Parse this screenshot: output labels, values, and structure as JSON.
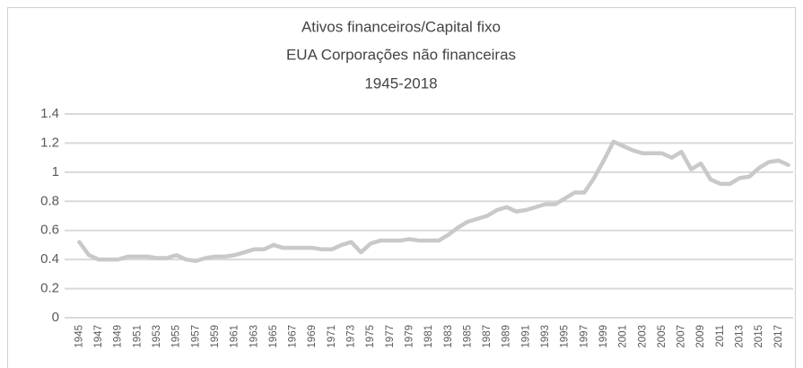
{
  "chart_data": {
    "type": "line",
    "title": "Ativos financeiros/Capital fixo",
    "subtitle": [
      "EUA Corporações não financeiras",
      "1945-2018"
    ],
    "categories": [
      "1945",
      null,
      "1947",
      null,
      "1949",
      null,
      "1951",
      null,
      "1953",
      null,
      "1955",
      null,
      "1957",
      null,
      "1959",
      null,
      "1961",
      null,
      "1963",
      null,
      "1965",
      null,
      "1967",
      null,
      "1969",
      null,
      "1971",
      null,
      "1973",
      null,
      "1975",
      null,
      "1977",
      null,
      "1979",
      null,
      "1981",
      null,
      "1983",
      null,
      "1985",
      null,
      "1987",
      null,
      "1989",
      null,
      "1991",
      null,
      "1993",
      null,
      "1995",
      null,
      "1997",
      null,
      "1999",
      null,
      "2001",
      null,
      "2003",
      null,
      "2005",
      null,
      "2007",
      null,
      "2009",
      null,
      "2011",
      null,
      "2013",
      null,
      "2015",
      null,
      "2017",
      null
    ],
    "values": [
      0.52,
      0.43,
      0.4,
      0.4,
      0.4,
      0.42,
      0.42,
      0.42,
      0.41,
      0.41,
      0.43,
      0.4,
      0.39,
      0.41,
      0.42,
      0.42,
      0.43,
      0.45,
      0.47,
      0.47,
      0.5,
      0.48,
      0.48,
      0.48,
      0.48,
      0.47,
      0.47,
      0.5,
      0.52,
      0.45,
      0.51,
      0.53,
      0.53,
      0.53,
      0.54,
      0.53,
      0.53,
      0.53,
      0.57,
      0.62,
      0.66,
      0.68,
      0.7,
      0.74,
      0.76,
      0.73,
      0.74,
      0.76,
      0.78,
      0.78,
      0.82,
      0.86,
      0.86,
      0.96,
      1.08,
      1.21,
      1.18,
      1.15,
      1.13,
      1.13,
      1.13,
      1.1,
      1.14,
      1.02,
      1.06,
      0.95,
      0.92,
      0.92,
      0.96,
      0.97,
      1.03,
      1.07,
      1.08,
      1.05
    ],
    "color": "#c9c9c9",
    "ylim": [
      0,
      1.4
    ],
    "yticks": [
      0,
      0.2,
      0.4,
      0.6,
      0.8,
      1,
      1.2,
      1.4
    ],
    "grid": true
  }
}
